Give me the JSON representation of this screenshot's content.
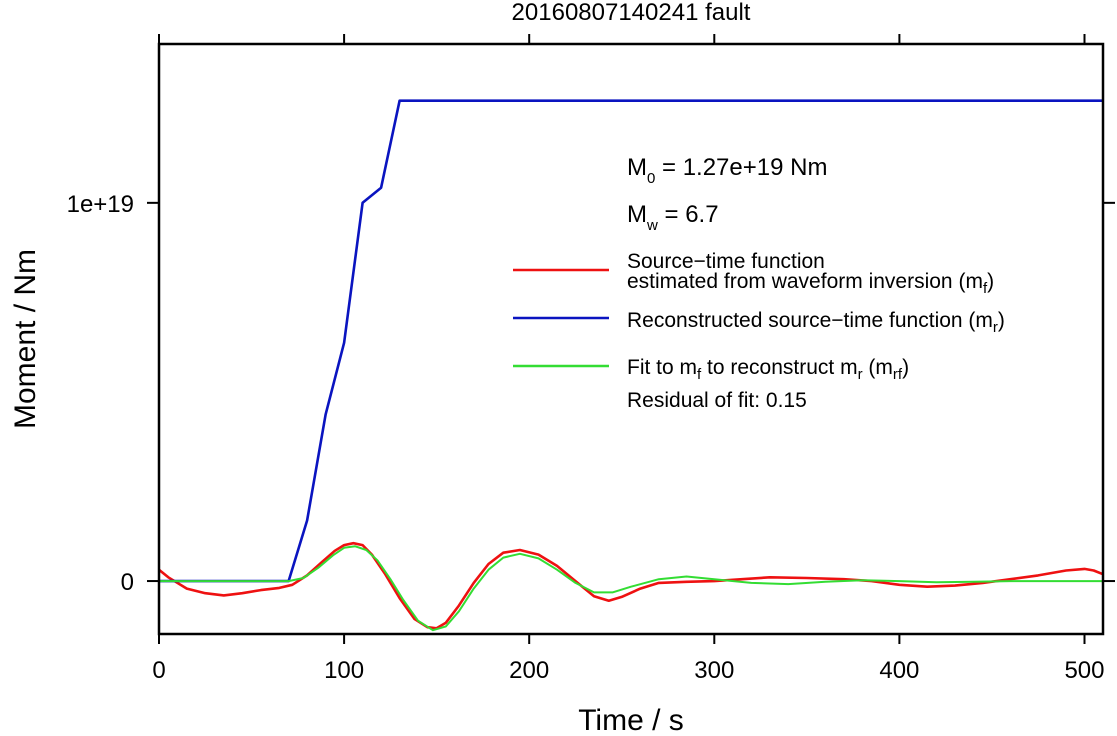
{
  "chart_data": {
    "type": "line",
    "title": "20160807140241 fault",
    "xlabel": "Time / s",
    "ylabel": "Moment / Nm",
    "xlim": [
      0,
      510
    ],
    "ylim": [
      -1.4e+18,
      1.42e+19
    ],
    "xticks": [
      {
        "value": 0,
        "label": "0"
      },
      {
        "value": 100,
        "label": "100"
      },
      {
        "value": 200,
        "label": "200"
      },
      {
        "value": 300,
        "label": "300"
      },
      {
        "value": 400,
        "label": "400"
      },
      {
        "value": 500,
        "label": "500"
      }
    ],
    "yticks": [
      {
        "value": 0,
        "label": "0"
      },
      {
        "value": 1e+19,
        "label": "1e+19"
      }
    ],
    "grid": false,
    "legend_position": "right",
    "annotations": {
      "m0": {
        "prefix": "M",
        "sub": "0",
        "text": " = 1.27e+19 Nm"
      },
      "mw": {
        "prefix": "M",
        "sub": "w",
        "text": " = 6.7"
      },
      "residual": "Residual of fit: 0.15"
    },
    "series": [
      {
        "id": "mf",
        "color": "#ee1111",
        "legend": {
          "line1": "Source−time function",
          "line2_pre": "estimated from waveform inversion (m",
          "line2_sub": "f",
          "line2_post": ")"
        },
        "x": [
          0,
          5,
          15,
          25,
          35,
          45,
          55,
          65,
          72,
          80,
          88,
          95,
          100,
          105,
          110,
          115,
          122,
          130,
          138,
          145,
          150,
          155,
          162,
          170,
          178,
          186,
          195,
          205,
          215,
          225,
          235,
          243,
          250,
          260,
          270,
          285,
          300,
          315,
          330,
          350,
          370,
          385,
          400,
          415,
          430,
          445,
          460,
          475,
          490,
          500,
          505,
          510
        ],
        "y": [
          3e+17,
          1e+17,
          -2e+17,
          -3.2e+17,
          -3.8e+17,
          -3.2e+17,
          -2.4e+17,
          -1.8e+17,
          -1e+17,
          1.5e+17,
          5e+17,
          8e+17,
          9.5e+17,
          1e+18,
          9.5e+17,
          7e+17,
          2e+17,
          -4.5e+17,
          -1e+18,
          -1.22e+18,
          -1.25e+18,
          -1.1e+18,
          -6.5e+17,
          -5e+16,
          4.5e+17,
          7.5e+17,
          8.2e+17,
          7e+17,
          4e+17,
          0.0,
          -4e+17,
          -5.2e+17,
          -4.2e+17,
          -2e+17,
          -5e+16,
          -2e+16,
          0.0,
          5e+16,
          1e+17,
          8e+16,
          5e+16,
          0.0,
          -1e+17,
          -1.5e+17,
          -1.2e+17,
          -5e+16,
          5e+16,
          1.5e+17,
          2.8e+17,
          3.2e+17,
          2.8e+17,
          1.8e+17
        ]
      },
      {
        "id": "mr",
        "color": "#0a14c0",
        "legend": {
          "line1_pre": "Reconstructed source−time function (m",
          "line1_sub": "r",
          "line1_post": ")"
        },
        "x": [
          0,
          70,
          80,
          90,
          100,
          110,
          120,
          130,
          510
        ],
        "y": [
          0,
          0,
          1.6e+18,
          4.4e+18,
          6.3e+18,
          1e+19,
          1.04e+19,
          1.27e+19,
          1.27e+19
        ]
      },
      {
        "id": "mrf",
        "color": "#33dd33",
        "legend": {
          "line1_a": "Fit to m",
          "line1_a_sub": "f",
          "line1_b": " to reconstruct m",
          "line1_b_sub": "r",
          "line1_c": " (m",
          "line1_c_sub": "rf",
          "line1_d": ")"
        },
        "x": [
          0,
          20,
          40,
          60,
          70,
          78,
          86,
          94,
          100,
          106,
          112,
          118,
          125,
          132,
          140,
          148,
          155,
          162,
          170,
          178,
          186,
          195,
          205,
          215,
          225,
          235,
          245,
          255,
          270,
          285,
          300,
          320,
          340,
          360,
          380,
          400,
          420,
          440,
          460,
          480,
          500,
          510
        ],
        "y": [
          0,
          0,
          0,
          0,
          0,
          8e+16,
          3.5e+17,
          6.8e+17,
          8.8e+17,
          9.2e+17,
          8.2e+17,
          5.5e+17,
          5e+16,
          -5e+17,
          -1.05e+18,
          -1.3e+18,
          -1.2e+18,
          -8e+17,
          -2e+17,
          3e+17,
          6.2e+17,
          7.2e+17,
          6e+17,
          3e+17,
          -5e+16,
          -3e+17,
          -3e+17,
          -1.5e+17,
          5e+16,
          1.2e+17,
          5e+16,
          -5e+16,
          -8e+16,
          -2e+16,
          2e+16,
          0.0,
          -3e+16,
          -2e+16,
          0.0,
          0.0,
          0.0,
          0.0
        ]
      }
    ]
  }
}
